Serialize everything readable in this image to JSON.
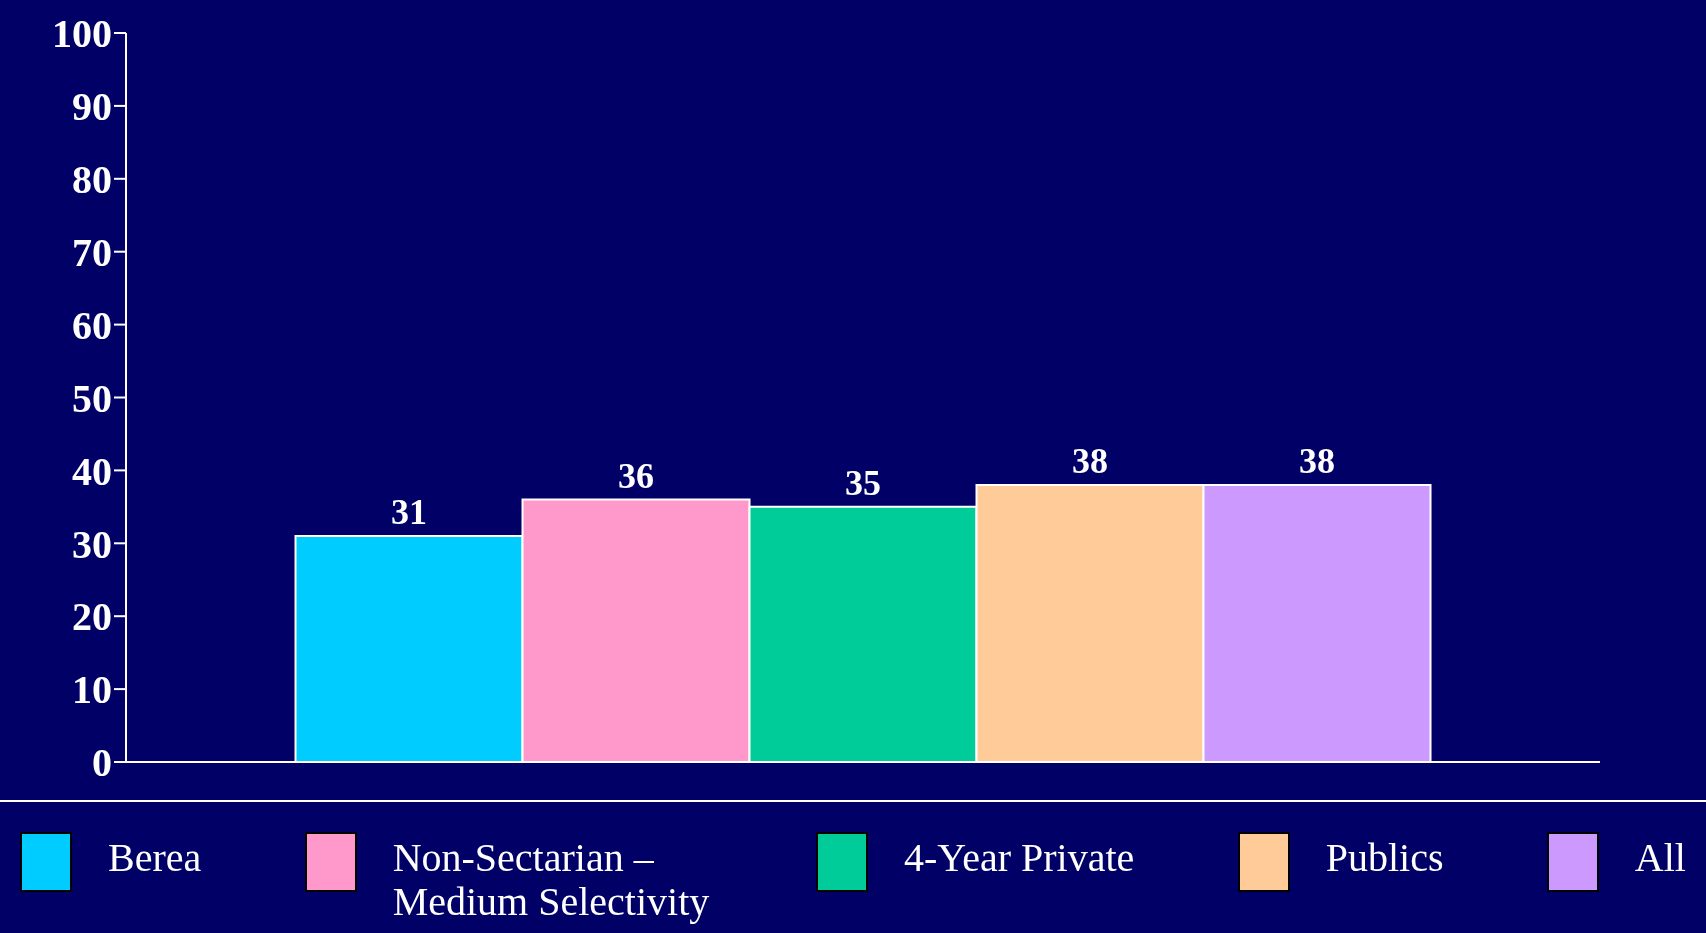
{
  "chart_data": {
    "type": "bar",
    "categories": [
      null
    ],
    "series": [
      {
        "name": "Berea",
        "color": "#00ccff",
        "values": [
          31
        ]
      },
      {
        "name": "Non-Sectarian – Medium Selectivity",
        "color": "#ff99cc",
        "values": [
          36
        ]
      },
      {
        "name": "4-Year Private",
        "color": "#00cc99",
        "values": [
          35
        ]
      },
      {
        "name": "Publics",
        "color": "#ffcc99",
        "values": [
          38
        ]
      },
      {
        "name": "All",
        "color": "#cc99ff",
        "values": [
          38
        ]
      }
    ],
    "ylim": [
      0,
      100
    ],
    "yticks": [
      0,
      10,
      20,
      30,
      40,
      50,
      60,
      70,
      80,
      90,
      100
    ],
    "data_labels": true,
    "grid": false,
    "legend": "bottom"
  }
}
